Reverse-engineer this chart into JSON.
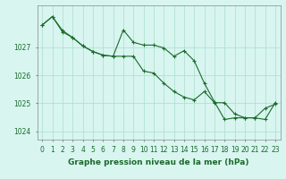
{
  "background_color": "#d8f5f0",
  "grid_color": "#aaddcc",
  "line_color": "#1a6b2a",
  "marker": "+",
  "marker_size": 3,
  "line_width": 0.8,
  "xlabel": "Graphe pression niveau de la mer (hPa)",
  "xlabel_fontsize": 6.5,
  "tick_fontsize": 5.5,
  "ylim": [
    1023.7,
    1028.5
  ],
  "yticks": [
    1024,
    1025,
    1026,
    1027
  ],
  "xticks": [
    0,
    1,
    2,
    3,
    4,
    5,
    6,
    7,
    8,
    9,
    10,
    11,
    12,
    13,
    14,
    15,
    16,
    17,
    18,
    19,
    20,
    21,
    22,
    23
  ],
  "series1": [
    1027.8,
    1028.1,
    1027.55,
    1027.35,
    1027.05,
    1026.85,
    1026.72,
    1026.68,
    1026.68,
    1026.68,
    1026.15,
    1026.08,
    1025.72,
    1025.42,
    1025.22,
    1025.12,
    1025.42,
    1025.02,
    1025.02,
    1024.62,
    1024.48,
    1024.48,
    1024.82,
    1024.97
  ],
  "series2": [
    1027.8,
    1028.1,
    1027.6,
    1027.35,
    1027.05,
    1026.85,
    1026.72,
    1026.68,
    1027.62,
    1027.18,
    1027.08,
    1027.08,
    1026.98,
    1026.68,
    1026.88,
    1026.52,
    1025.72,
    1025.05,
    1024.42,
    1024.48,
    1024.48,
    1024.48,
    1024.42,
    1025.02
  ]
}
